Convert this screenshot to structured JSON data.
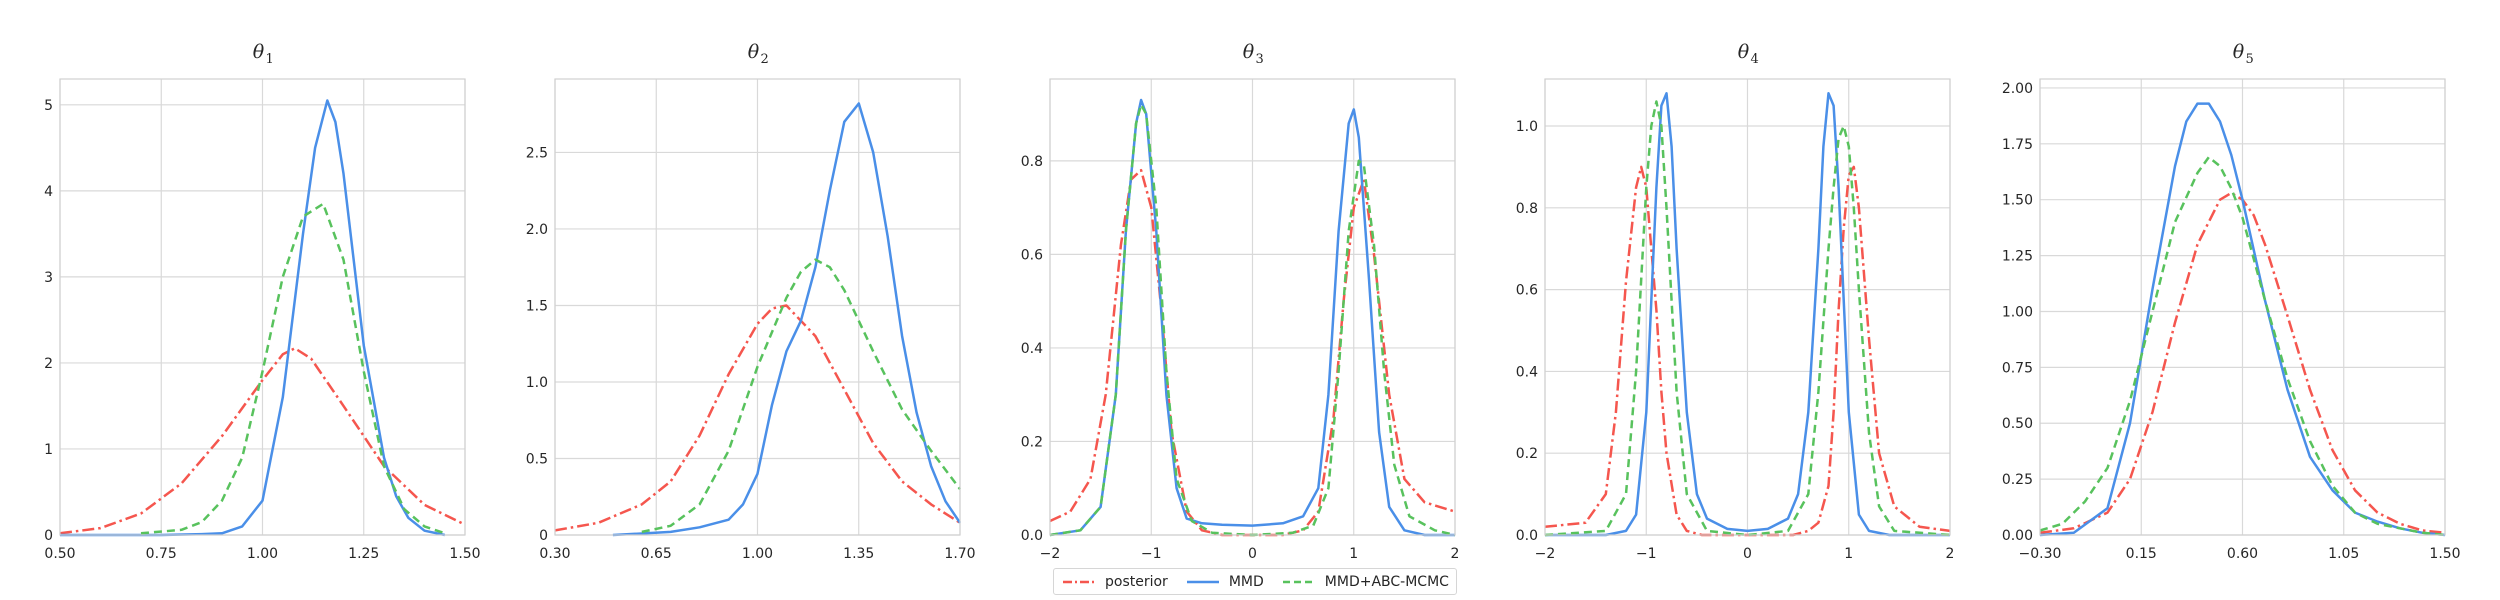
{
  "chart_data": [
    {
      "type": "line",
      "title": "θ",
      "title_sub": "1",
      "xlim": [
        0.5,
        1.5
      ],
      "ylim": [
        0,
        5.3
      ],
      "xticks": [
        0.5,
        0.75,
        1.0,
        1.25,
        1.5
      ],
      "xtick_labels": [
        "0.50",
        "0.75",
        "1.00",
        "1.25",
        "1.50"
      ],
      "yticks": [
        0,
        1,
        2,
        3,
        4,
        5
      ],
      "ytick_labels": [
        "0",
        "1",
        "2",
        "3",
        "4",
        "5"
      ],
      "grid": true,
      "series": [
        {
          "key": "posterior",
          "x": [
            0.5,
            0.6,
            0.7,
            0.8,
            0.9,
            1.0,
            1.05,
            1.08,
            1.12,
            1.2,
            1.3,
            1.4,
            1.5
          ],
          "y": [
            0.02,
            0.08,
            0.25,
            0.6,
            1.15,
            1.8,
            2.1,
            2.17,
            2.05,
            1.5,
            0.8,
            0.35,
            0.12
          ]
        },
        {
          "key": "mmd",
          "x": [
            0.5,
            0.75,
            0.85,
            0.9,
            0.95,
            1.0,
            1.05,
            1.1,
            1.13,
            1.16,
            1.18,
            1.2,
            1.25,
            1.3,
            1.33,
            1.36,
            1.4,
            1.45
          ],
          "y": [
            0,
            0,
            0.01,
            0.02,
            0.1,
            0.4,
            1.6,
            3.5,
            4.5,
            5.05,
            4.8,
            4.2,
            2.2,
            0.9,
            0.45,
            0.2,
            0.05,
            0
          ]
        },
        {
          "key": "mmd_abc",
          "x": [
            0.7,
            0.8,
            0.85,
            0.9,
            0.95,
            1.0,
            1.05,
            1.1,
            1.15,
            1.2,
            1.25,
            1.3,
            1.35,
            1.4,
            1.45
          ],
          "y": [
            0.02,
            0.06,
            0.15,
            0.4,
            0.9,
            1.9,
            3.0,
            3.7,
            3.85,
            3.2,
            1.9,
            0.8,
            0.3,
            0.1,
            0.02
          ]
        }
      ]
    },
    {
      "type": "line",
      "title": "θ",
      "title_sub": "2",
      "xlim": [
        0.3,
        1.7
      ],
      "ylim": [
        0,
        2.98
      ],
      "xticks": [
        0.3,
        0.65,
        1.0,
        1.35,
        1.7
      ],
      "xtick_labels": [
        "0.30",
        "0.65",
        "1.00",
        "1.35",
        "1.70"
      ],
      "yticks": [
        0,
        0.5,
        1.0,
        1.5,
        2.0,
        2.5
      ],
      "ytick_labels": [
        "0",
        "0.5",
        "1.0",
        "1.5",
        "2.0",
        "2.5"
      ],
      "grid": true,
      "series": [
        {
          "key": "posterior",
          "x": [
            0.3,
            0.45,
            0.6,
            0.7,
            0.8,
            0.9,
            1.0,
            1.05,
            1.1,
            1.2,
            1.3,
            1.4,
            1.5,
            1.6,
            1.7
          ],
          "y": [
            0.03,
            0.08,
            0.2,
            0.35,
            0.65,
            1.05,
            1.38,
            1.48,
            1.5,
            1.3,
            0.95,
            0.6,
            0.35,
            0.2,
            0.08
          ]
        },
        {
          "key": "mmd",
          "x": [
            0.5,
            0.6,
            0.7,
            0.8,
            0.9,
            0.95,
            1.0,
            1.05,
            1.1,
            1.15,
            1.2,
            1.25,
            1.3,
            1.35,
            1.4,
            1.45,
            1.5,
            1.55,
            1.6,
            1.65,
            1.7
          ],
          "y": [
            0,
            0.01,
            0.02,
            0.05,
            0.1,
            0.2,
            0.4,
            0.85,
            1.2,
            1.4,
            1.75,
            2.25,
            2.7,
            2.82,
            2.5,
            1.95,
            1.3,
            0.8,
            0.45,
            0.22,
            0.08
          ]
        },
        {
          "key": "mmd_abc",
          "x": [
            0.6,
            0.7,
            0.8,
            0.9,
            1.0,
            1.1,
            1.15,
            1.2,
            1.25,
            1.3,
            1.4,
            1.5,
            1.6,
            1.7
          ],
          "y": [
            0.02,
            0.06,
            0.2,
            0.55,
            1.1,
            1.55,
            1.72,
            1.8,
            1.75,
            1.6,
            1.2,
            0.82,
            0.55,
            0.3
          ]
        }
      ]
    },
    {
      "type": "line",
      "title": "θ",
      "title_sub": "3",
      "xlim": [
        -2,
        2
      ],
      "ylim": [
        0,
        0.975
      ],
      "xticks": [
        -2,
        -1,
        0,
        1,
        2
      ],
      "xtick_labels": [
        "−2",
        "−1",
        "0",
        "1",
        "2"
      ],
      "yticks": [
        0,
        0.2,
        0.4,
        0.6,
        0.8
      ],
      "ytick_labels": [
        "0.0",
        "0.2",
        "0.4",
        "0.6",
        "0.8"
      ],
      "grid": true,
      "series": [
        {
          "key": "posterior",
          "x": [
            -2,
            -1.8,
            -1.6,
            -1.45,
            -1.3,
            -1.2,
            -1.1,
            -1.0,
            -0.9,
            -0.8,
            -0.65,
            -0.5,
            -0.3,
            0,
            0.3,
            0.5,
            0.65,
            0.8,
            0.9,
            1.0,
            1.1,
            1.2,
            1.35,
            1.5,
            1.7,
            2
          ],
          "y": [
            0.03,
            0.05,
            0.12,
            0.3,
            0.62,
            0.76,
            0.78,
            0.7,
            0.48,
            0.22,
            0.05,
            0.01,
            0,
            0,
            0,
            0.01,
            0.05,
            0.25,
            0.5,
            0.7,
            0.76,
            0.6,
            0.3,
            0.12,
            0.07,
            0.05
          ]
        },
        {
          "key": "mmd",
          "x": [
            -2,
            -1.7,
            -1.5,
            -1.35,
            -1.25,
            -1.15,
            -1.1,
            -1.05,
            -0.95,
            -0.85,
            -0.75,
            -0.65,
            -0.5,
            -0.3,
            0,
            0.3,
            0.5,
            0.65,
            0.75,
            0.85,
            0.95,
            1.0,
            1.05,
            1.15,
            1.25,
            1.35,
            1.5,
            1.7,
            2
          ],
          "y": [
            0,
            0.01,
            0.06,
            0.3,
            0.65,
            0.88,
            0.93,
            0.9,
            0.65,
            0.3,
            0.1,
            0.035,
            0.025,
            0.022,
            0.02,
            0.025,
            0.04,
            0.1,
            0.3,
            0.65,
            0.88,
            0.91,
            0.85,
            0.55,
            0.22,
            0.06,
            0.01,
            0,
            0
          ]
        },
        {
          "key": "mmd_abc",
          "x": [
            -2,
            -1.7,
            -1.5,
            -1.35,
            -1.25,
            -1.15,
            -1.1,
            -1.05,
            -0.95,
            -0.85,
            -0.75,
            -0.6,
            -0.4,
            0,
            0.4,
            0.6,
            0.75,
            0.85,
            0.95,
            1.05,
            1.1,
            1.2,
            1.3,
            1.4,
            1.55,
            1.8,
            2
          ],
          "y": [
            0,
            0.01,
            0.06,
            0.3,
            0.65,
            0.88,
            0.92,
            0.9,
            0.7,
            0.35,
            0.12,
            0.03,
            0.005,
            0,
            0.005,
            0.02,
            0.1,
            0.35,
            0.65,
            0.8,
            0.79,
            0.62,
            0.35,
            0.15,
            0.04,
            0.01,
            0
          ]
        }
      ]
    },
    {
      "type": "line",
      "title": "θ",
      "title_sub": "4",
      "xlim": [
        -2,
        2
      ],
      "ylim": [
        0,
        1.115
      ],
      "xticks": [
        -2,
        -1,
        0,
        1,
        2
      ],
      "xtick_labels": [
        "−2",
        "−1",
        "0",
        "1",
        "2"
      ],
      "yticks": [
        0,
        0.2,
        0.4,
        0.6,
        0.8,
        1.0
      ],
      "ytick_labels": [
        "0.0",
        "0.2",
        "0.4",
        "0.6",
        "0.8",
        "1.0"
      ],
      "grid": true,
      "series": [
        {
          "key": "posterior",
          "x": [
            -2,
            -1.6,
            -1.4,
            -1.3,
            -1.2,
            -1.1,
            -1.05,
            -1.0,
            -0.95,
            -0.9,
            -0.85,
            -0.8,
            -0.7,
            -0.6,
            -0.45,
            0,
            0.45,
            0.6,
            0.7,
            0.8,
            0.85,
            0.9,
            0.95,
            1.0,
            1.05,
            1.1,
            1.2,
            1.3,
            1.45,
            1.7,
            2
          ],
          "y": [
            0.02,
            0.03,
            0.1,
            0.3,
            0.62,
            0.85,
            0.9,
            0.85,
            0.7,
            0.55,
            0.35,
            0.2,
            0.05,
            0.01,
            0,
            0,
            0,
            0.01,
            0.03,
            0.12,
            0.3,
            0.55,
            0.75,
            0.88,
            0.9,
            0.8,
            0.48,
            0.2,
            0.07,
            0.02,
            0.01
          ]
        },
        {
          "key": "mmd",
          "x": [
            -2,
            -1.4,
            -1.2,
            -1.1,
            -1.0,
            -0.9,
            -0.85,
            -0.8,
            -0.75,
            -0.7,
            -0.6,
            -0.5,
            -0.4,
            -0.2,
            0,
            0.2,
            0.4,
            0.5,
            0.6,
            0.7,
            0.75,
            0.8,
            0.85,
            0.9,
            1.0,
            1.1,
            1.2,
            1.4,
            2
          ],
          "y": [
            0,
            0,
            0.01,
            0.05,
            0.3,
            0.85,
            1.05,
            1.08,
            0.95,
            0.7,
            0.3,
            0.1,
            0.04,
            0.015,
            0.01,
            0.015,
            0.04,
            0.1,
            0.3,
            0.7,
            0.95,
            1.08,
            1.05,
            0.85,
            0.3,
            0.05,
            0.01,
            0,
            0
          ]
        },
        {
          "key": "mmd_abc",
          "x": [
            -2,
            -1.4,
            -1.2,
            -1.1,
            -1.0,
            -0.95,
            -0.9,
            -0.85,
            -0.8,
            -0.7,
            -0.6,
            -0.4,
            0,
            0.4,
            0.6,
            0.7,
            0.8,
            0.85,
            0.9,
            0.95,
            1.0,
            1.05,
            1.1,
            1.2,
            1.3,
            1.45,
            2
          ],
          "y": [
            0,
            0.01,
            0.1,
            0.4,
            0.85,
            1.0,
            1.06,
            1.0,
            0.8,
            0.35,
            0.1,
            0.01,
            0,
            0.01,
            0.1,
            0.35,
            0.7,
            0.85,
            0.97,
            1.0,
            0.95,
            0.8,
            0.6,
            0.25,
            0.07,
            0.01,
            0
          ]
        }
      ]
    },
    {
      "type": "line",
      "title": "θ",
      "title_sub": "5",
      "xlim": [
        -0.3,
        1.5
      ],
      "ylim": [
        0,
        2.04
      ],
      "xticks": [
        -0.3,
        0.15,
        0.6,
        1.05,
        1.5
      ],
      "xtick_labels": [
        "−0.30",
        "0.15",
        "0.60",
        "1.05",
        "1.50"
      ],
      "yticks": [
        0,
        0.25,
        0.5,
        0.75,
        1.0,
        1.25,
        1.5,
        1.75,
        2.0
      ],
      "ytick_labels": [
        "0.00",
        "0.25",
        "0.50",
        "0.75",
        "1.00",
        "1.25",
        "1.50",
        "1.75",
        "2.00"
      ],
      "grid": true,
      "series": [
        {
          "key": "posterior",
          "x": [
            -0.3,
            -0.15,
            0,
            0.1,
            0.2,
            0.3,
            0.4,
            0.5,
            0.55,
            0.6,
            0.65,
            0.7,
            0.8,
            0.9,
            1.0,
            1.1,
            1.2,
            1.3,
            1.4,
            1.5
          ],
          "y": [
            0.01,
            0.03,
            0.1,
            0.25,
            0.55,
            0.95,
            1.3,
            1.5,
            1.53,
            1.5,
            1.43,
            1.3,
            0.98,
            0.65,
            0.38,
            0.2,
            0.1,
            0.05,
            0.02,
            0.01
          ]
        },
        {
          "key": "mmd",
          "x": [
            -0.3,
            -0.15,
            0,
            0.1,
            0.2,
            0.3,
            0.35,
            0.4,
            0.45,
            0.5,
            0.55,
            0.6,
            0.7,
            0.8,
            0.9,
            1.0,
            1.1,
            1.2,
            1.3,
            1.4,
            1.5
          ],
          "y": [
            0,
            0.01,
            0.12,
            0.5,
            1.1,
            1.65,
            1.85,
            1.93,
            1.93,
            1.85,
            1.7,
            1.5,
            1.05,
            0.65,
            0.35,
            0.2,
            0.1,
            0.06,
            0.03,
            0.01,
            0
          ]
        },
        {
          "key": "mmd_abc",
          "x": [
            -0.3,
            -0.2,
            -0.1,
            0,
            0.1,
            0.2,
            0.3,
            0.4,
            0.45,
            0.5,
            0.55,
            0.6,
            0.7,
            0.8,
            0.9,
            1.0,
            1.1,
            1.2,
            1.3,
            1.4,
            1.5
          ],
          "y": [
            0.02,
            0.05,
            0.15,
            0.3,
            0.6,
            1.0,
            1.4,
            1.62,
            1.69,
            1.65,
            1.55,
            1.42,
            1.05,
            0.7,
            0.42,
            0.22,
            0.1,
            0.05,
            0.03,
            0.01,
            0
          ]
        }
      ]
    }
  ],
  "legend": {
    "placement": "bottom-center",
    "items": [
      {
        "key": "posterior",
        "label": "posterior",
        "color": "#f5564e",
        "dash": "dashdot"
      },
      {
        "key": "mmd",
        "label": "MMD",
        "color": "#4a8fe8",
        "dash": "solid"
      },
      {
        "key": "mmd_abc",
        "label": "MMD+ABC-MCMC",
        "color": "#58c25d",
        "dash": "dashed"
      }
    ]
  },
  "colors": {
    "posterior": "#f5564e",
    "mmd": "#4a8fe8",
    "mmd_abc": "#58c25d",
    "grid": "#d9d9d9",
    "frame": "#d0d0d0"
  }
}
